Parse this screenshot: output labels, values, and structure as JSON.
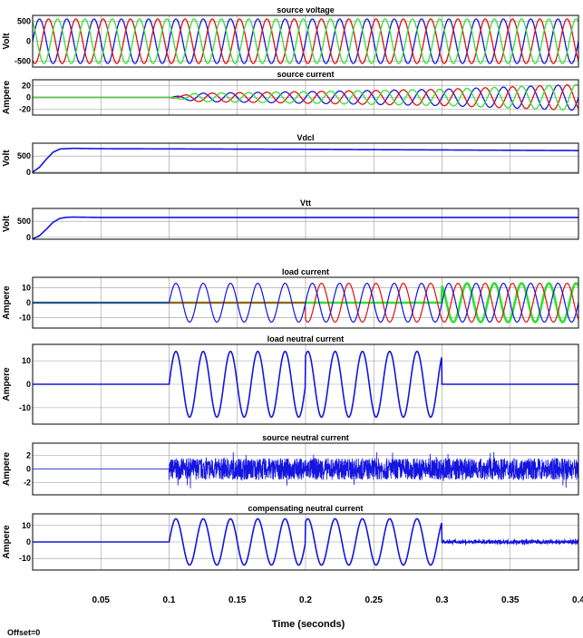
{
  "colors": {
    "blue": "#1515e0",
    "red": "#e01010",
    "green": "#33e033",
    "grid": "#9a9a9a",
    "frame": "#000000"
  },
  "chart_data": [
    {
      "type": "line",
      "title": "source voltage",
      "ylabel": "Volt",
      "yticks": [
        500,
        0,
        -500
      ],
      "ylim": [
        -650,
        650
      ],
      "xlim": [
        0,
        0.4
      ],
      "signal": "three-phase sinusoid, 50 Hz",
      "series": [
        {
          "name": "",
          "color": "blue",
          "amplitude": 560,
          "phase_deg": 0
        },
        {
          "name": "",
          "color": "red",
          "amplitude": 560,
          "phase_deg": -120
        },
        {
          "name": "",
          "color": "green",
          "amplitude": 560,
          "phase_deg": 120
        }
      ]
    },
    {
      "type": "line",
      "title": "source current",
      "ylabel": "Ampere",
      "yticks": [
        20,
        0,
        -20
      ],
      "ylim": [
        -30,
        30
      ],
      "xlim": [
        0,
        0.4
      ],
      "signal": "zero until 0.1 s, then three-phase sinusoid, 50 Hz, amplitude growing",
      "amplitude_points": [
        [
          0.1,
          0
        ],
        [
          0.12,
          7
        ],
        [
          0.2,
          10
        ],
        [
          0.3,
          14
        ],
        [
          0.4,
          22
        ]
      ],
      "series": [
        {
          "name": "",
          "color": "blue",
          "phase_deg": 0
        },
        {
          "name": "",
          "color": "red",
          "phase_deg": -120
        },
        {
          "name": "",
          "color": "green",
          "phase_deg": 120
        }
      ]
    },
    {
      "type": "line",
      "title": "Vdcl",
      "ylabel": "Volt",
      "yticks": [
        500,
        0
      ],
      "ylim": [
        -30,
        900
      ],
      "xlim": [
        0,
        0.4
      ],
      "series": [
        {
          "name": "",
          "color": "blue",
          "points": [
            [
              0,
              0
            ],
            [
              0.005,
              150
            ],
            [
              0.01,
              400
            ],
            [
              0.015,
              620
            ],
            [
              0.02,
              720
            ],
            [
              0.03,
              740
            ],
            [
              0.05,
              728
            ],
            [
              0.1,
              722
            ],
            [
              0.2,
              710
            ],
            [
              0.3,
              690
            ],
            [
              0.4,
              670
            ]
          ]
        }
      ]
    },
    {
      "type": "line",
      "title": "Vtt",
      "ylabel": "Volt",
      "yticks": [
        500,
        0
      ],
      "ylim": [
        -60,
        900
      ],
      "xlim": [
        0,
        0.4
      ],
      "series": [
        {
          "name": "",
          "color": "blue",
          "points": [
            [
              0,
              -50
            ],
            [
              0.005,
              50
            ],
            [
              0.01,
              250
            ],
            [
              0.015,
              470
            ],
            [
              0.02,
              590
            ],
            [
              0.025,
              625
            ],
            [
              0.03,
              630
            ],
            [
              0.05,
              620
            ],
            [
              0.1,
              620
            ],
            [
              0.4,
              620
            ]
          ]
        }
      ]
    },
    {
      "type": "line",
      "title": "load current",
      "ylabel": "Ampere",
      "yticks": [
        10,
        0,
        -10
      ],
      "ylim": [
        -17,
        17
      ],
      "xlim": [
        0,
        0.4
      ],
      "signal": "one phase from 0.1 s, two phases from 0.2 s, three phases from 0.3 s; amplitude about 13 A",
      "series": [
        {
          "name": "",
          "color": "blue",
          "amplitude": 13,
          "phase_deg": 0,
          "on": [
            0.1,
            0.4
          ]
        },
        {
          "name": "",
          "color": "red",
          "amplitude": 13,
          "phase_deg": -120,
          "on": [
            0.2,
            0.4
          ]
        },
        {
          "name": "",
          "color": "green",
          "amplitude": 13,
          "phase_deg": 120,
          "on": [
            0.3,
            0.4
          ]
        }
      ]
    },
    {
      "type": "line",
      "title": "load neutral current",
      "ylabel": "Ampere",
      "yticks": [
        10,
        0,
        -10
      ],
      "ylim": [
        -17,
        17
      ],
      "xlim": [
        0,
        0.4
      ],
      "series": [
        {
          "name": "",
          "color": "blue",
          "amplitude": 14,
          "on": [
            0.1,
            0.3
          ],
          "signal": "sinusoid 50 Hz, phase jump at 0.2 s"
        }
      ]
    },
    {
      "type": "line",
      "title": "source neutral current",
      "ylabel": "Ampere",
      "yticks": [
        2,
        0,
        -2
      ],
      "ylim": [
        -3.8,
        3.8
      ],
      "xlim": [
        0,
        0.4
      ],
      "series": [
        {
          "name": "",
          "color": "blue",
          "on": [
            0.1,
            0.4
          ],
          "signal": "high-frequency ripple about ±1.6 A"
        }
      ]
    },
    {
      "type": "line",
      "title": "compensating neutral current",
      "ylabel": "Ampere",
      "yticks": [
        10,
        0,
        -10
      ],
      "ylim": [
        -17,
        17
      ],
      "xlim": [
        0,
        0.4
      ],
      "series": [
        {
          "name": "",
          "color": "blue",
          "amplitude": 14,
          "on": [
            0.1,
            0.3
          ],
          "signal": "sinusoid 50 Hz, then small ripple after 0.3 s"
        }
      ]
    }
  ],
  "x_axis": {
    "label": "Time (seconds)",
    "ticks": [
      {
        "v": 0.05,
        "label": "0.05"
      },
      {
        "v": 0.1,
        "label": "0.1"
      },
      {
        "v": 0.15,
        "label": "0.15"
      },
      {
        "v": 0.2,
        "label": "0.2"
      },
      {
        "v": 0.25,
        "label": "0.25"
      },
      {
        "v": 0.3,
        "label": "0.3"
      },
      {
        "v": 0.35,
        "label": "0.35"
      },
      {
        "v": 0.4,
        "label": "0.4"
      }
    ]
  },
  "offset_text": "Offset=0"
}
